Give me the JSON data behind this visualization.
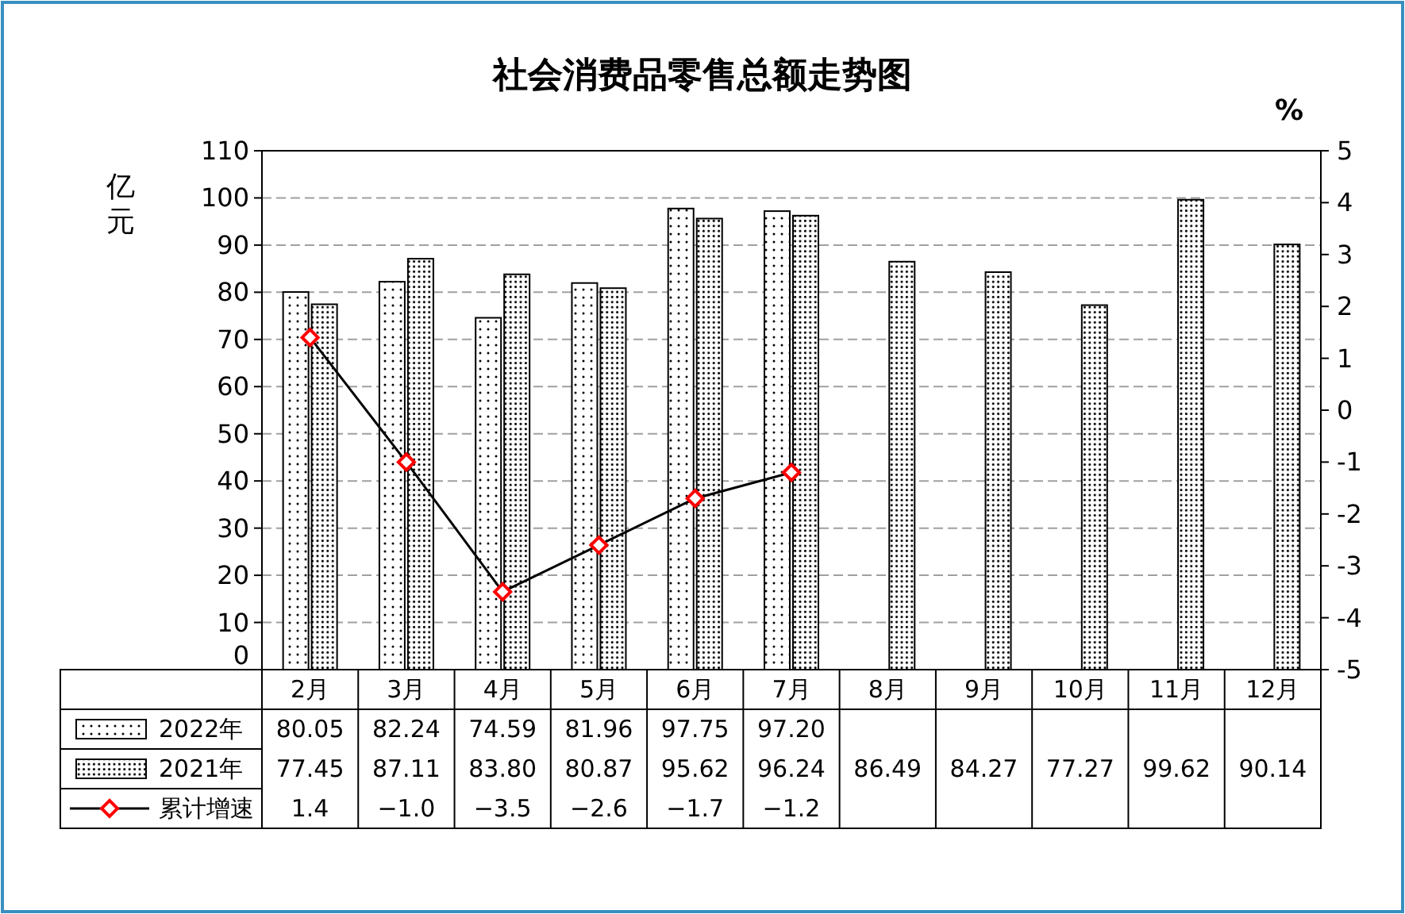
{
  "chart_data": {
    "type": "bar",
    "title": "社会消费品零售总额走势图",
    "ylabel": "亿元",
    "y2label": "%",
    "categories": [
      "2月",
      "3月",
      "4月",
      "5月",
      "6月",
      "7月",
      "8月",
      "9月",
      "10月",
      "11月",
      "12月"
    ],
    "series": [
      {
        "name": "2022年",
        "color": "#000000",
        "values": [
          80.05,
          82.24,
          74.59,
          81.96,
          97.75,
          97.2,
          null,
          null,
          null,
          null,
          null
        ],
        "value_labels": [
          "80.05",
          "82.24",
          "74.59",
          "81.96",
          "97.75",
          "97.20",
          null,
          null,
          null,
          null,
          null
        ]
      },
      {
        "name": "2021年",
        "color": "#000000",
        "values": [
          77.45,
          87.11,
          83.8,
          80.87,
          95.62,
          96.24,
          86.49,
          84.27,
          77.27,
          99.62,
          90.14
        ],
        "value_labels": [
          "77.45",
          "87.11",
          "83.80",
          "80.87",
          "95.62",
          "96.24",
          "86.49",
          "84.27",
          "77.27",
          "99.62",
          "90.14"
        ]
      },
      {
        "name": "累计增速",
        "type": "line",
        "axis": "y2",
        "color": "#ff0000",
        "marker": "diamond",
        "values": [
          1.4,
          -1.0,
          -3.5,
          -2.6,
          -1.7,
          -1.2,
          null,
          null,
          null,
          null,
          null
        ],
        "value_labels": [
          "1.4",
          "−1.0",
          "−3.5",
          "−2.6",
          "−1.7",
          "−1.2",
          null,
          null,
          null,
          null,
          null
        ]
      }
    ],
    "ylim": [
      0,
      110
    ],
    "yticks": [
      0,
      10,
      20,
      30,
      40,
      50,
      60,
      70,
      80,
      90,
      100,
      110
    ],
    "y2lim": [
      -5,
      5
    ],
    "y2ticks": [
      -5,
      -4,
      -3,
      -2,
      -1,
      0,
      1,
      2,
      3,
      4,
      5
    ],
    "grid": "y",
    "legend": "bottom"
  }
}
